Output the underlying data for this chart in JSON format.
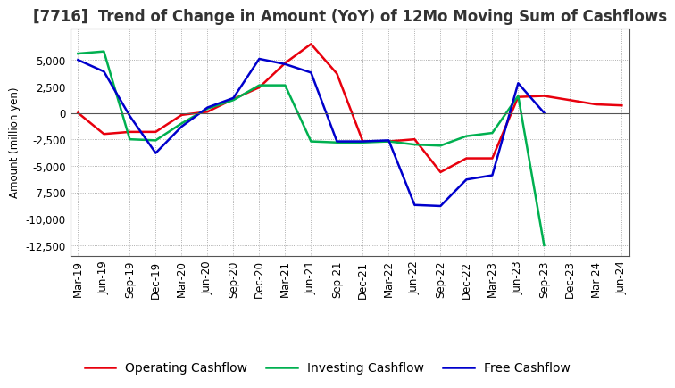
{
  "title": "[7716]  Trend of Change in Amount (YoY) of 12Mo Moving Sum of Cashflows",
  "ylabel": "Amount (million yen)",
  "xlabels": [
    "Mar-19",
    "Jun-19",
    "Sep-19",
    "Dec-19",
    "Mar-20",
    "Jun-20",
    "Sep-20",
    "Dec-20",
    "Mar-21",
    "Jun-21",
    "Sep-21",
    "Dec-21",
    "Mar-22",
    "Jun-22",
    "Sep-22",
    "Dec-22",
    "Mar-23",
    "Jun-23",
    "Sep-23",
    "Dec-23",
    "Mar-24",
    "Jun-24"
  ],
  "operating": [
    0,
    -2000,
    -1800,
    -1800,
    -200,
    100,
    1300,
    2400,
    4700,
    6500,
    3700,
    -2700,
    -2700,
    -2500,
    -5600,
    -4300,
    -4300,
    1500,
    1600,
    1200,
    800,
    700
  ],
  "investing": [
    5600,
    5800,
    -2500,
    -2600,
    -1000,
    400,
    1200,
    2600,
    2600,
    -2700,
    -2800,
    -2800,
    -2700,
    -3000,
    -3100,
    -2200,
    -1900,
    1600,
    -12500,
    null,
    null,
    null
  ],
  "free": [
    5000,
    3900,
    -300,
    -3800,
    -1300,
    500,
    1400,
    5100,
    4600,
    3800,
    -2700,
    -2700,
    -2600,
    -8700,
    -8800,
    -6300,
    -5900,
    2800,
    0,
    null,
    null,
    null
  ],
  "operating_color": "#e8000d",
  "investing_color": "#00b050",
  "free_color": "#0000cc",
  "ylim": [
    -13500,
    8000
  ],
  "yticks": [
    -12500,
    -10000,
    -7500,
    -5000,
    -2500,
    0,
    2500,
    5000
  ],
  "background_color": "#ffffff",
  "grid_color": "#999999",
  "title_fontsize": 12,
  "legend_fontsize": 10,
  "axis_fontsize": 8.5
}
